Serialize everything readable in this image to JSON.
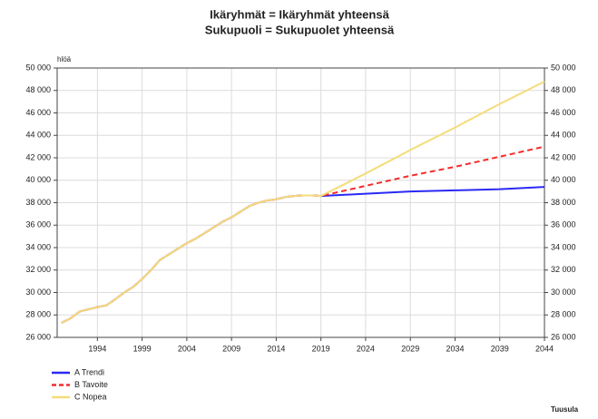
{
  "chart_data": {
    "type": "line",
    "title": [
      "Ikäryhmät = Ikäryhmät yhteensä",
      "Sukupuoli = Sukupuolet yhteensä"
    ],
    "y_label": "hlöä",
    "source": "Tuusula",
    "x": [
      1990,
      1991,
      1992,
      1993,
      1994,
      1995,
      1996,
      1997,
      1998,
      1999,
      2000,
      2001,
      2002,
      2003,
      2004,
      2005,
      2006,
      2007,
      2008,
      2009,
      2010,
      2011,
      2012,
      2013,
      2014,
      2015,
      2016,
      2017,
      2018,
      2019,
      2024,
      2029,
      2034,
      2039,
      2044
    ],
    "xlim": [
      1989.5,
      2044
    ],
    "xticks": [
      1994,
      1999,
      2004,
      2009,
      2014,
      2019,
      2024,
      2029,
      2034,
      2039,
      2044
    ],
    "ylim": [
      26000,
      50000
    ],
    "yticks": [
      {
        "value": 26000,
        "label": "26 000"
      },
      {
        "value": 28000,
        "label": "28 000"
      },
      {
        "value": 30000,
        "label": "30 000"
      },
      {
        "value": 32000,
        "label": "32 000"
      },
      {
        "value": 34000,
        "label": "34 000"
      },
      {
        "value": 36000,
        "label": "36 000"
      },
      {
        "value": 38000,
        "label": "38 000"
      },
      {
        "value": 40000,
        "label": "40 000"
      },
      {
        "value": 42000,
        "label": "42 000"
      },
      {
        "value": 44000,
        "label": "44 000"
      },
      {
        "value": 46000,
        "label": "46 000"
      },
      {
        "value": 48000,
        "label": "48 000"
      },
      {
        "value": 50000,
        "label": "50 000"
      }
    ],
    "y2lim": [
      26000,
      50000
    ],
    "y2ticks": [
      {
        "value": 26000,
        "label": "26 000"
      },
      {
        "value": 28000,
        "label": "28 000"
      },
      {
        "value": 30000,
        "label": "30 000"
      },
      {
        "value": 32000,
        "label": "32 000"
      },
      {
        "value": 34000,
        "label": "34 000"
      },
      {
        "value": 36000,
        "label": "36 000"
      },
      {
        "value": 38000,
        "label": "38 000"
      },
      {
        "value": 40000,
        "label": "40 000"
      },
      {
        "value": 42000,
        "label": "42 000"
      },
      {
        "value": 44000,
        "label": "44 000"
      },
      {
        "value": 46000,
        "label": "46 000"
      },
      {
        "value": 48000,
        "label": "48 000"
      },
      {
        "value": 50000,
        "label": "50 000"
      }
    ],
    "grid": true,
    "legend": "bottom-left",
    "series": [
      {
        "name": "A Trendi",
        "color": "#2a2af5",
        "dashed": false,
        "values": [
          27300,
          27700,
          28300,
          28500,
          28700,
          28850,
          29400,
          30000,
          30500,
          31200,
          32000,
          32900,
          33400,
          33900,
          34400,
          34800,
          35300,
          35800,
          36300,
          36700,
          37200,
          37700,
          38000,
          38200,
          38300,
          38500,
          38600,
          38650,
          38650,
          38600,
          38800,
          39000,
          39100,
          39200,
          39400
        ]
      },
      {
        "name": "B Tavoite",
        "color": "#f52a2a",
        "dashed": true,
        "values": [
          27300,
          27700,
          28300,
          28500,
          28700,
          28850,
          29400,
          30000,
          30500,
          31200,
          32000,
          32900,
          33400,
          33900,
          34400,
          34800,
          35300,
          35800,
          36300,
          36700,
          37200,
          37700,
          38000,
          38200,
          38300,
          38500,
          38600,
          38650,
          38650,
          38600,
          39500,
          40400,
          41200,
          42100,
          43000
        ]
      },
      {
        "name": "C Nopea",
        "color": "#f5dc78",
        "dashed": false,
        "values": [
          27300,
          27700,
          28300,
          28500,
          28700,
          28850,
          29400,
          30000,
          30500,
          31200,
          32000,
          32900,
          33400,
          33900,
          34400,
          34800,
          35300,
          35800,
          36300,
          36700,
          37200,
          37700,
          38000,
          38200,
          38300,
          38500,
          38600,
          38650,
          38650,
          38600,
          40600,
          42700,
          44700,
          46800,
          48800
        ]
      }
    ]
  }
}
